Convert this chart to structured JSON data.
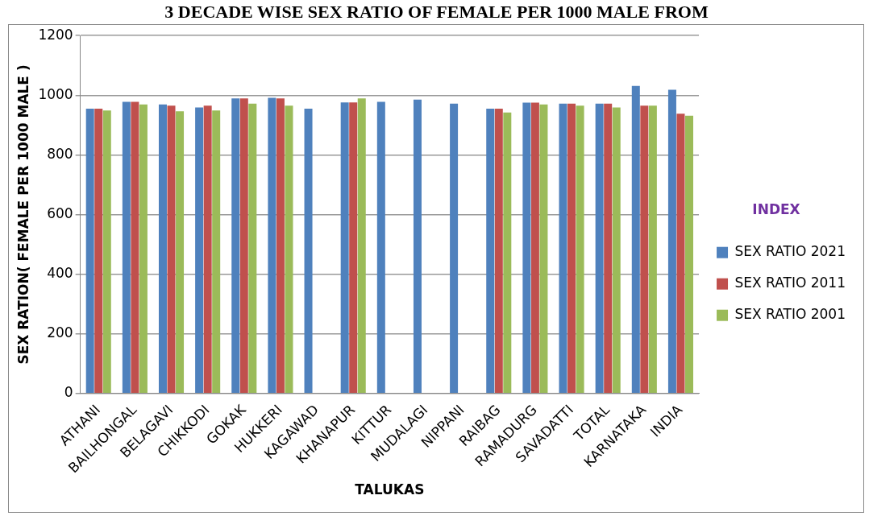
{
  "chart_data": {
    "type": "bar",
    "title": "3 DECADE WISE SEX RATIO OF FEMALE PER 1000 MALE FROM",
    "xlabel": "TALUKAS",
    "ylabel": "SEX RATION( FEMALE PER 1000 MALE )",
    "legend_title": "INDEX",
    "categories": [
      "ATHANI",
      "BAILHONGAL",
      "BELAGAVI",
      "CHIKKODI",
      "GOKAK",
      "HUKKERI",
      "KAGAWAD",
      "KHANAPUR",
      "KITTUR",
      "MUDALAGI",
      "NIPPANI",
      "RAIBAG",
      "RAMADURG",
      "SAVADATTI",
      "TOTAL",
      "KARNATAKA",
      "INDIA"
    ],
    "series": [
      {
        "name": "SEX RATIO 2021",
        "color": "#4f81bd",
        "values": [
          955,
          978,
          969,
          959,
          989,
          991,
          955,
          976,
          978,
          985,
          972,
          955,
          975,
          972,
          972,
          1031,
          1018
        ]
      },
      {
        "name": "SEX RATIO 2011",
        "color": "#c0504d",
        "values": [
          955,
          978,
          965,
          965,
          989,
          989,
          null,
          976,
          null,
          null,
          null,
          955,
          975,
          972,
          972,
          965,
          938
        ]
      },
      {
        "name": "SEX RATIO 2001",
        "color": "#9bbb59",
        "values": [
          949,
          969,
          946,
          949,
          972,
          965,
          null,
          989,
          null,
          null,
          null,
          942,
          969,
          965,
          959,
          965,
          931
        ]
      }
    ],
    "ylim": [
      0,
      1200
    ],
    "yticks": [
      0,
      200,
      400,
      600,
      800,
      1000,
      1200
    ],
    "grid": "y",
    "legend": "right"
  }
}
